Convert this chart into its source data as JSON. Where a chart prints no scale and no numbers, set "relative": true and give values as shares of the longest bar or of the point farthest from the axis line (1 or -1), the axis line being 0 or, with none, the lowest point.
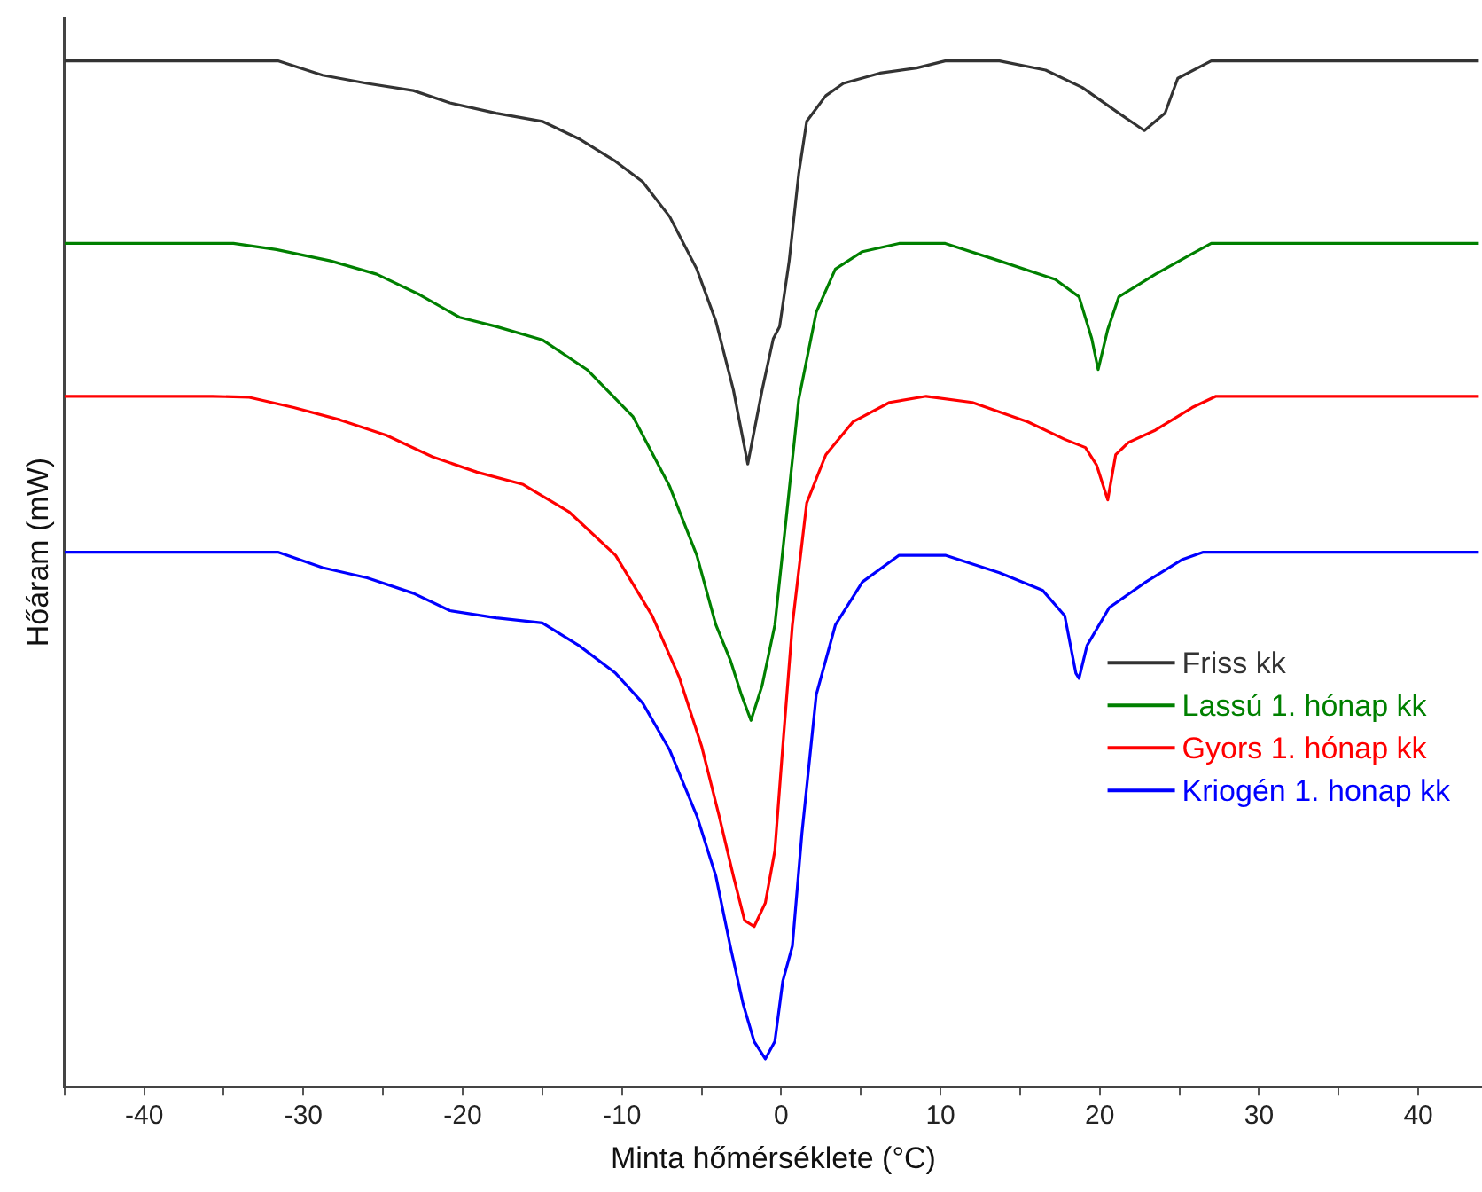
{
  "chart_data": {
    "type": "line",
    "relative": true,
    "xlabel": "Minta hőmérséklete (°C)",
    "ylabel": "Hőáram (mW)",
    "xlim": [
      -45,
      44
    ],
    "xticks": [
      {
        "value": -45,
        "label": null
      },
      -40,
      {
        "value": -35,
        "label": null
      },
      -30,
      {
        "value": -25,
        "label": null
      },
      -20,
      {
        "value": -15,
        "label": null
      },
      -10,
      {
        "value": -5,
        "label": null
      },
      0,
      {
        "value": 5,
        "label": null
      },
      10,
      {
        "value": 15,
        "label": null
      },
      20,
      {
        "value": 25,
        "label": null
      },
      30,
      {
        "value": 35,
        "label": null
      },
      40
    ],
    "grid": false,
    "legend": "bottom right",
    "marker": "none",
    "line_style": "solid",
    "series": [
      {
        "name": "Friss kk",
        "color": "#333333",
        "x": [
          -45,
          -31.6,
          -28.8,
          -26,
          -23.1,
          -20.8,
          -17.9,
          -15,
          -12.7,
          -10.4,
          -8.7,
          -7,
          -5.3,
          -4.1,
          -3,
          -2.1,
          -1.2,
          -0.5,
          -0.1,
          0.5,
          1.1,
          1.6,
          2.8,
          3.9,
          6.2,
          8.5,
          10.3,
          13.7,
          16.6,
          18.9,
          21.2,
          22.8,
          24.1,
          24.9,
          27,
          43.8
        ],
        "values": [
          1,
          1,
          0.986,
          0.978,
          0.971,
          0.959,
          0.949,
          0.941,
          0.924,
          0.902,
          0.882,
          0.848,
          0.797,
          0.746,
          0.679,
          0.607,
          0.679,
          0.729,
          0.741,
          0.805,
          0.89,
          0.941,
          0.966,
          0.978,
          0.988,
          0.993,
          1,
          1,
          0.991,
          0.974,
          0.949,
          0.932,
          0.949,
          0.983,
          1,
          1
        ]
      },
      {
        "name": "Lassú 1. hónap kk",
        "color": "#008000",
        "x": [
          -45,
          -34.4,
          -31.7,
          -28.3,
          -25.4,
          -22.7,
          -20.2,
          -17.9,
          -15,
          -12.2,
          -9.3,
          -7,
          -5.3,
          -4.1,
          -3.2,
          -2.5,
          -1.9,
          -1.2,
          -0.4,
          0.3,
          1.1,
          2.2,
          3.4,
          5.1,
          7.4,
          10.3,
          13.7,
          17.2,
          18.7,
          19.5,
          19.9,
          20.5,
          21.2,
          23.5,
          25.8,
          27,
          43.8
        ],
        "values": [
          0.822,
          0.822,
          0.816,
          0.805,
          0.792,
          0.772,
          0.75,
          0.741,
          0.728,
          0.699,
          0.653,
          0.585,
          0.518,
          0.45,
          0.416,
          0.382,
          0.357,
          0.391,
          0.45,
          0.552,
          0.67,
          0.755,
          0.797,
          0.814,
          0.822,
          0.822,
          0.805,
          0.787,
          0.77,
          0.729,
          0.699,
          0.738,
          0.77,
          0.792,
          0.812,
          0.822,
          0.822
        ]
      },
      {
        "name": "Gyors 1. hónap kk",
        "color": "#ff0000",
        "x": [
          -45,
          -35.7,
          -33.4,
          -30.6,
          -27.7,
          -24.8,
          -21.9,
          -19.1,
          -16.2,
          -13.3,
          -10.4,
          -8.1,
          -6.4,
          -5,
          -3.9,
          -3,
          -2.3,
          -1.7,
          -1,
          -0.4,
          0.1,
          0.7,
          1.6,
          2.8,
          4.5,
          6.8,
          9.1,
          12,
          15.5,
          17.8,
          19.1,
          19.8,
          20.5,
          21,
          21.8,
          23.5,
          25.8,
          27.3,
          43.8
        ],
        "values": [
          0.673,
          0.673,
          0.672,
          0.662,
          0.65,
          0.635,
          0.614,
          0.599,
          0.587,
          0.56,
          0.518,
          0.459,
          0.399,
          0.332,
          0.264,
          0.205,
          0.162,
          0.156,
          0.179,
          0.23,
          0.332,
          0.45,
          0.569,
          0.616,
          0.648,
          0.667,
          0.673,
          0.667,
          0.648,
          0.631,
          0.623,
          0.606,
          0.572,
          0.616,
          0.628,
          0.64,
          0.662,
          0.673,
          0.673
        ]
      },
      {
        "name": "Kriogén 1. honap kk",
        "color": "#0000ff",
        "x": [
          -45,
          -31.6,
          -28.8,
          -26,
          -23.1,
          -20.8,
          -17.9,
          -15,
          -12.7,
          -10.4,
          -8.7,
          -7,
          -5.3,
          -4.1,
          -3.2,
          -2.4,
          -1.7,
          -1,
          -0.4,
          0.1,
          0.7,
          1.3,
          2.2,
          3.4,
          5.1,
          7.4,
          10.3,
          13.7,
          16.4,
          17.8,
          18.5,
          18.7,
          19.2,
          20.6,
          22.9,
          25.2,
          26.5,
          43.8
        ],
        "values": [
          0.521,
          0.521,
          0.506,
          0.496,
          0.481,
          0.464,
          0.457,
          0.452,
          0.43,
          0.403,
          0.374,
          0.328,
          0.264,
          0.205,
          0.137,
          0.081,
          0.044,
          0.027,
          0.044,
          0.103,
          0.137,
          0.247,
          0.382,
          0.45,
          0.492,
          0.518,
          0.518,
          0.501,
          0.484,
          0.459,
          0.403,
          0.398,
          0.43,
          0.467,
          0.492,
          0.514,
          0.521,
          0.521
        ]
      }
    ]
  }
}
